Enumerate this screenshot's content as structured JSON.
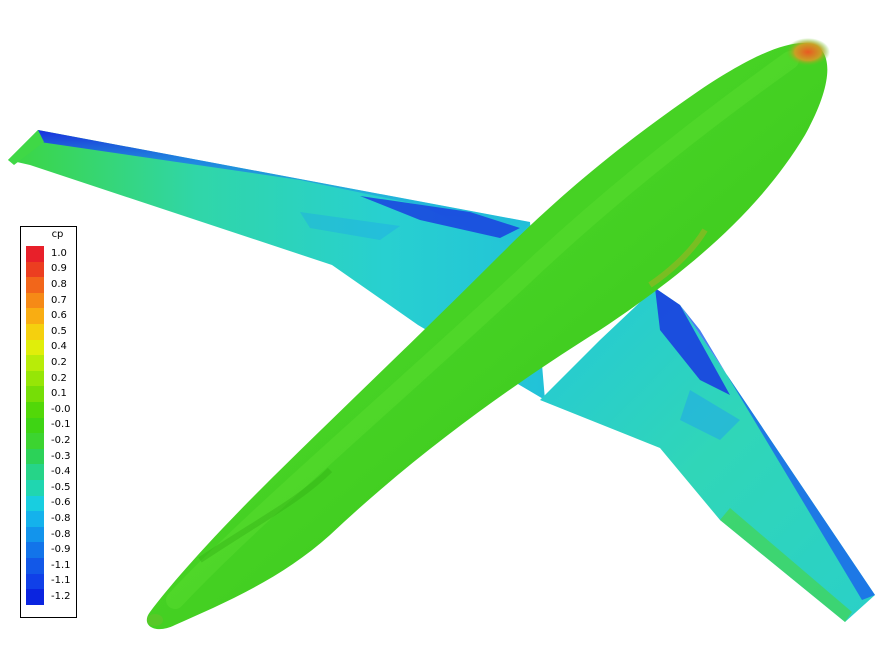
{
  "legend": {
    "title": "cp",
    "labels": [
      "1.0",
      "0.9",
      "0.8",
      "0.7",
      "0.6",
      "0.5",
      "0.4",
      "0.2",
      "0.2",
      "0.1",
      "-0.0",
      "-0.1",
      "-0.2",
      "-0.3",
      "-0.4",
      "-0.5",
      "-0.6",
      "-0.8",
      "-0.8",
      "-0.9",
      "-1.1",
      "-1.1",
      "-1.2"
    ],
    "colors": [
      "#e8202a",
      "#ec3e20",
      "#f2661a",
      "#f68a16",
      "#f9ad12",
      "#f5d00e",
      "#e0ee0a",
      "#b8ec08",
      "#96e606",
      "#76de06",
      "#52d808",
      "#3ed414",
      "#3cd430",
      "#2cd258",
      "#26d488",
      "#20d6b0",
      "#18cee0",
      "#14b2ec",
      "#1294ec",
      "#1274ea",
      "#1258e8",
      "#1040e8",
      "#0a24e0"
    ]
  },
  "colors": {
    "fuselage": "#3fc81c",
    "wing_green": "#48d83a",
    "wing_cyan": "#2ad2c4",
    "wing_blue": "#1f5ff0",
    "nose_red": "#e86a2a"
  }
}
